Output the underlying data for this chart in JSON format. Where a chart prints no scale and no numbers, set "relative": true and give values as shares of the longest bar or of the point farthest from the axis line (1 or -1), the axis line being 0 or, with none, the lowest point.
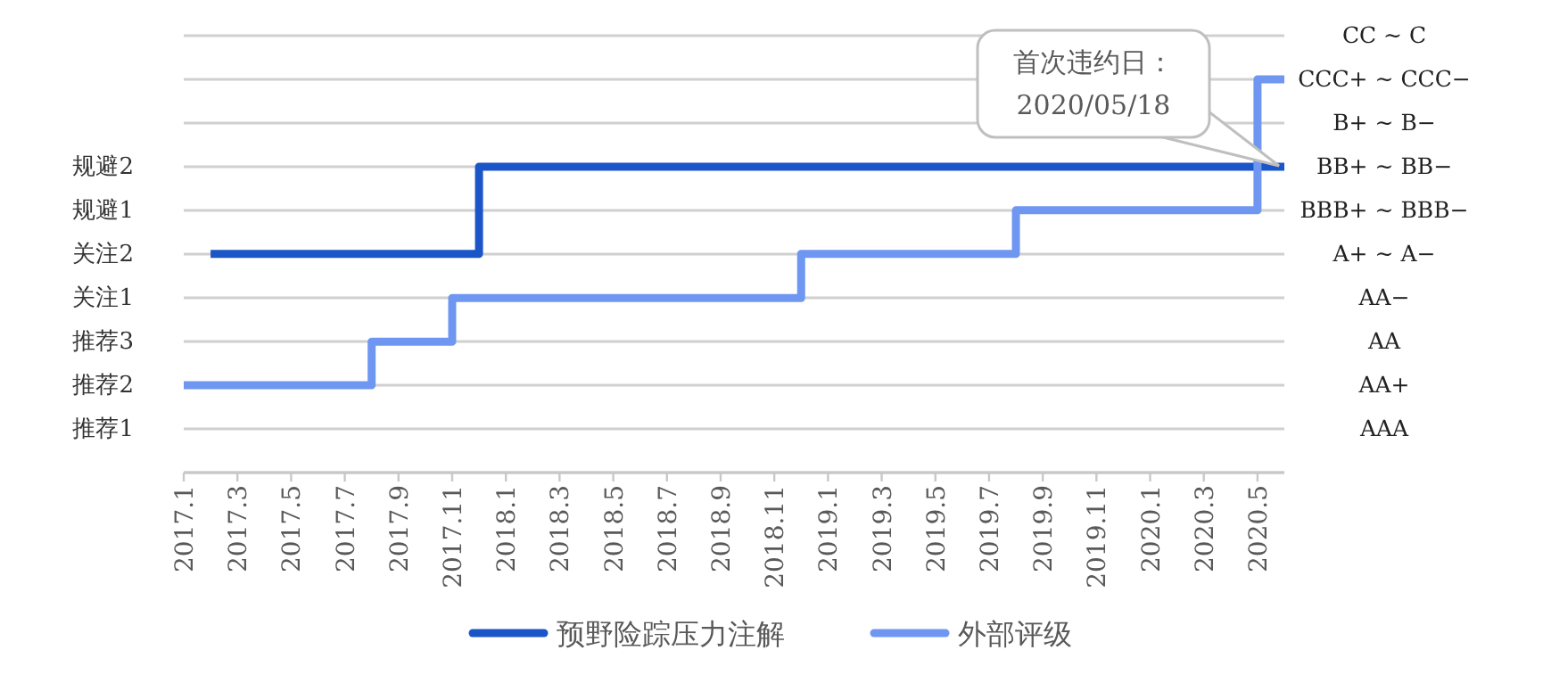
{
  "chart_data": {
    "type": "step",
    "relative": true,
    "categories": [
      "2017.1",
      null,
      "2017.3",
      null,
      "2017.5",
      null,
      "2017.7",
      null,
      "2017.9",
      null,
      "2017.11",
      null,
      "2018.1",
      null,
      "2018.3",
      null,
      "2018.5",
      null,
      "2018.7",
      null,
      "2018.9",
      null,
      "2018.11",
      null,
      "2019.1",
      null,
      "2019.3",
      null,
      "2019.5",
      null,
      "2019.7",
      null,
      "2019.9",
      null,
      "2019.11",
      null,
      "2020.1",
      null,
      "2020.3",
      null,
      "2020.5",
      null
    ],
    "y_categories": [
      null,
      null,
      null,
      "规避2",
      "规避1",
      "关注2",
      "关注1",
      "推荐3",
      "推荐2",
      "推荐1",
      null
    ],
    "y2_categories": [
      "CC ~ C",
      "CCC+ ~ CCC−",
      "B+ ~ B−",
      "BB+ ~ BB−",
      "BBB+ ~ BBB−",
      "A+ ~ A−",
      "AA−",
      "AA",
      "AA+",
      "AAA",
      null
    ],
    "series": [
      {
        "name": "预野险踪压力注解",
        "color": "#1a56c8",
        "values": [
          null,
          0.556,
          0.556,
          0.556,
          0.556,
          0.556,
          0.556,
          0.556,
          0.556,
          0.556,
          0.556,
          0.778,
          0.778,
          0.778,
          0.778,
          0.778,
          0.778,
          0.778,
          0.778,
          0.778,
          0.778,
          0.778,
          0.778,
          0.778,
          0.778,
          0.778,
          0.778,
          0.778,
          0.778,
          0.778,
          0.778,
          0.778,
          0.778,
          0.778,
          0.778,
          0.778,
          0.778,
          0.778,
          0.778,
          0.778,
          0.778,
          0.778
        ]
      },
      {
        "name": "外部评级",
        "color": "#6f97f2",
        "values": [
          0.222,
          0.222,
          0.222,
          0.222,
          0.222,
          0.222,
          0.222,
          0.333,
          0.333,
          0.333,
          0.444,
          0.444,
          0.444,
          0.444,
          0.444,
          0.444,
          0.444,
          0.444,
          0.444,
          0.444,
          0.444,
          0.444,
          0.444,
          0.556,
          0.556,
          0.556,
          0.556,
          0.556,
          0.556,
          0.556,
          0.556,
          0.667,
          0.667,
          0.667,
          0.667,
          0.667,
          0.667,
          0.667,
          0.667,
          0.667,
          1,
          1
        ]
      }
    ],
    "grid": "y",
    "legend": "bottom",
    "line_style": "solid",
    "annotations": [
      "首次违约日：\n2020/05/18"
    ]
  }
}
